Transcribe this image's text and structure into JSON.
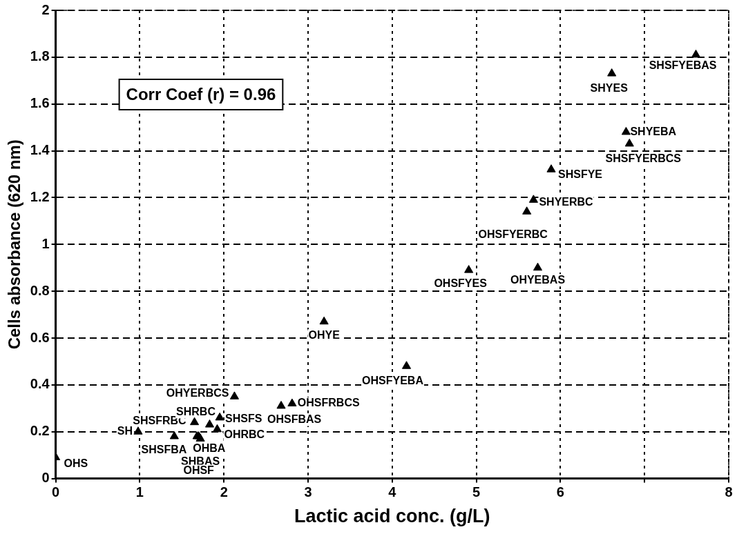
{
  "chart_data": {
    "type": "scatter",
    "xlabel": "Lactic acid conc. (g/L)",
    "ylabel": "Cells absorbance (620 nm)",
    "color": "#000000",
    "marker": "triangle",
    "grid": true,
    "x": [
      0,
      0.98,
      1.41,
      1.68,
      1.72,
      1.7,
      1.65,
      1.83,
      1.95,
      1.92,
      2.125,
      2.68,
      2.81,
      3.19,
      4.17,
      4.91,
      5.73,
      5.6,
      5.68,
      5.89,
      6.82,
      6.78,
      6.61,
      7.61
    ],
    "values": [
      0.09,
      0.2,
      0.18,
      0.18,
      0.17,
      0.18,
      0.24,
      0.23,
      0.26,
      0.21,
      0.35,
      0.31,
      0.32,
      0.67,
      0.48,
      0.89,
      0.9,
      1.14,
      1.19,
      1.32,
      1.43,
      1.48,
      1.73,
      1.81
    ],
    "xlim": [
      0,
      8
    ],
    "ylim": [
      0,
      2
    ],
    "xticks": [
      0,
      1,
      2,
      3,
      4,
      5,
      6,
      {
        "value": 7,
        "label": null
      },
      8
    ],
    "yticks": [
      0,
      0.2,
      0.4,
      0.6,
      0.8,
      1,
      1.2,
      1.4,
      1.6,
      1.8,
      2
    ],
    "annotations": [
      "Corr Coef (r) = 0.96",
      {
        "text": "OHS",
        "x": 0,
        "y": 0.09
      },
      {
        "text": "SH",
        "x": 0.98,
        "y": 0.2
      },
      {
        "text": "SHSFBA",
        "x": 1.41,
        "y": 0.18
      },
      {
        "text": "OHBA",
        "x": 1.68,
        "y": 0.18
      },
      {
        "text": "SHBAS",
        "x": 1.72,
        "y": 0.17
      },
      {
        "text": "OHSF",
        "x": 1.7,
        "y": 0.18
      },
      {
        "text": "SHSFRBC",
        "x": 1.65,
        "y": 0.24
      },
      {
        "text": "SHRBC",
        "x": 1.83,
        "y": 0.23
      },
      {
        "text": "SHSFS",
        "x": 1.95,
        "y": 0.26
      },
      {
        "text": "OHRBC",
        "x": 1.92,
        "y": 0.21
      },
      {
        "text": "OHYERBCS",
        "x": 2.125,
        "y": 0.35
      },
      {
        "text": "OHSFBAS",
        "x": 2.68,
        "y": 0.31
      },
      {
        "text": "OHSFRBCS",
        "x": 2.81,
        "y": 0.32
      },
      {
        "text": "OHYE",
        "x": 3.19,
        "y": 0.67
      },
      {
        "text": "OHSFYEBA",
        "x": 4.17,
        "y": 0.48
      },
      {
        "text": "OHSFYES",
        "x": 4.91,
        "y": 0.89
      },
      {
        "text": "OHYEBAS",
        "x": 5.73,
        "y": 0.9
      },
      {
        "text": "OHSFYERBC",
        "x": 5.6,
        "y": 1.14
      },
      {
        "text": "SHYERBC",
        "x": 5.68,
        "y": 1.19
      },
      {
        "text": "SHSFYE",
        "x": 5.89,
        "y": 1.32
      },
      {
        "text": "SHSFYERBCS",
        "x": 6.82,
        "y": 1.43
      },
      {
        "text": "SHYEBA",
        "x": 6.78,
        "y": 1.48
      },
      {
        "text": "SHYES",
        "x": 6.61,
        "y": 1.73
      },
      {
        "text": "SHSFYEBAS",
        "x": 7.61,
        "y": 1.81
      }
    ]
  }
}
